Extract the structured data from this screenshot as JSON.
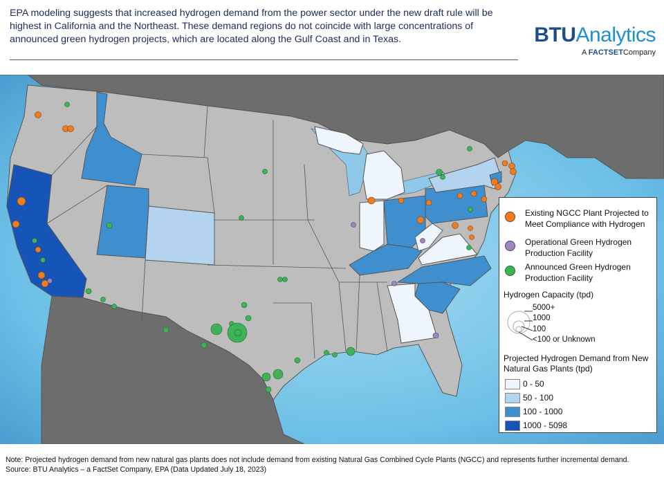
{
  "header": {
    "text": "EPA modeling suggests that increased hydrogen demand from the power sector under the new draft rule will be highest in California and the Northeast. These demand regions do not coincide with large concentrations of announced green hydrogen projects, which are located along the Gulf Coast and in Texas."
  },
  "logo": {
    "btu": "BTU",
    "analytics": "Analytics",
    "prefix": "A",
    "factset": "FACTSET",
    "company": "Company"
  },
  "legend": {
    "points": [
      {
        "label": "Existing NGCC Plant Projected to Meet Compliance with Hydrogen",
        "color": "#ee7d22"
      },
      {
        "label": "Operational Green Hydrogen Production Facility",
        "color": "#9e86c0"
      },
      {
        "label": "Announced Green Hydrogen Production Facility",
        "color": "#3fb257"
      }
    ],
    "capacity_title": "Hydrogen Capacity (tpd)",
    "capacity_levels": [
      "5000+",
      "1000",
      "100",
      "<100 or Unknown"
    ],
    "demand_title": "Projected Hydrogen Demand from New Natural Gas Plants (tpd)",
    "demand_classes": [
      {
        "label": "0 - 50",
        "color": "#eef5fc"
      },
      {
        "label": "50 - 100",
        "color": "#b3d3ee"
      },
      {
        "label": "100 - 1000",
        "color": "#3f8fcf"
      },
      {
        "label": "1000 - 5098",
        "color": "#1654b8"
      }
    ]
  },
  "colors": {
    "ocean": "#5bb0dc",
    "land_other": "#6d6d6d",
    "us_no_data": "#bdbdbd",
    "borders": "#555555"
  },
  "footer": {
    "note": "Note:  Projected hydrogen demand from new natural gas plants does not include demand from existing Natural Gas Combined Cycle Plants (NGCC) and represents further incremental demand.",
    "source": "Source: BTU Analytics – a FactSet Company, EPA (Data Updated July 18, 2023)"
  }
}
